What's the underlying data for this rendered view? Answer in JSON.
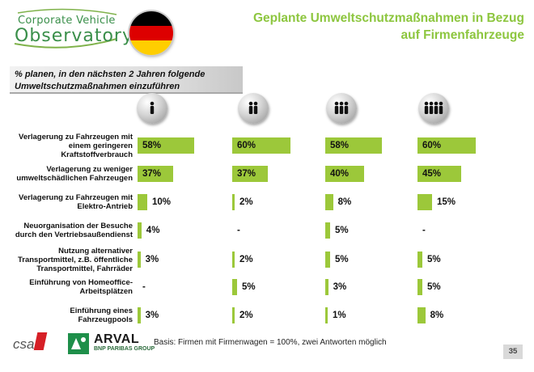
{
  "logo": {
    "line1": "Corporate Vehicle",
    "line2": "Observatory"
  },
  "flag_colors": [
    "#000000",
    "#dd0000",
    "#ffce00"
  ],
  "header": {
    "title_line1": "Geplante Umweltschutzmaßnahmen in Bezug",
    "title_line2": "auf Firmenfahrzeuge"
  },
  "subtitle": {
    "line1": "% planen, in den nächsten 2 Jahren folgende",
    "line2": "Umweltschutzmaßnahmen einzuführen"
  },
  "bar_color": "#9cc83a",
  "title_color": "#8dc63f",
  "chart_data": {
    "type": "bar",
    "orientation": "horizontal",
    "group_icons": [
      "person-1-icon",
      "person-2-icon",
      "person-3-icon",
      "person-4-icon"
    ],
    "categories": [
      [
        "Verlagerung zu Fahrzeugen mit",
        "einem geringeren",
        "Kraftstoffverbrauch"
      ],
      [
        "Verlagerung zu weniger",
        "umweltschädlichen Fahrzeugen"
      ],
      [
        "Verlagerung zu Fahrzeugen mit",
        "Elektro-Antrieb"
      ],
      [
        "Neuorganisation der Besuche",
        "durch den Vertriebsaußendienst"
      ],
      [
        "Nutzung alternativer",
        "Transportmittel, z.B. öffentliche",
        "Transportmittel, Fahrräder"
      ],
      [
        "Einführung von Homeoffice-",
        "Arbeitsplätzen"
      ],
      [
        "Einführung eines",
        "Fahrzeugpools"
      ]
    ],
    "series": [
      {
        "values": [
          58,
          37,
          10,
          4,
          3,
          null,
          3
        ],
        "labels": [
          "58%",
          "37%",
          "10%",
          "4%",
          "3%",
          "-",
          "3%"
        ]
      },
      {
        "values": [
          60,
          37,
          2,
          null,
          2,
          5,
          2
        ],
        "labels": [
          "60%",
          "37%",
          "2%",
          "-",
          "2%",
          "5%",
          "2%"
        ]
      },
      {
        "values": [
          58,
          40,
          8,
          5,
          5,
          3,
          1
        ],
        "labels": [
          "58%",
          "40%",
          "8%",
          "5%",
          "5%",
          "3%",
          "1%"
        ]
      },
      {
        "values": [
          60,
          45,
          15,
          null,
          5,
          5,
          8
        ],
        "labels": [
          "60%",
          "45%",
          "15%",
          "-",
          "5%",
          "5%",
          "8%"
        ]
      }
    ],
    "xlim": [
      0,
      100
    ]
  },
  "footer": {
    "csa": "csa",
    "arval": "ARVAL",
    "bnp": "BNP PARIBAS GROUP",
    "basis": "Basis: Firmen mit Firmenwagen = 100%, zwei Antworten möglich",
    "page": "35"
  }
}
